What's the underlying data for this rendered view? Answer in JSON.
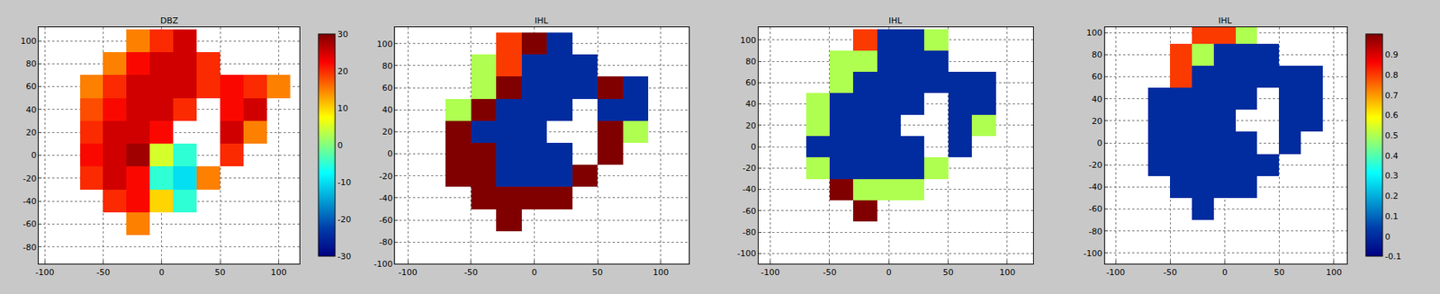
{
  "chart_data": [
    {
      "type": "heatmap",
      "title": "DBZ",
      "color": "jet",
      "grid": true,
      "x": [
        -100,
        -80,
        -60,
        -40,
        -20,
        0,
        20,
        40,
        60,
        80,
        100
      ],
      "y": [
        -100,
        -80,
        -60,
        -40,
        -20,
        0,
        20,
        40,
        60,
        80,
        100
      ],
      "z": [
        [
          null,
          null,
          null,
          null,
          null,
          null,
          null,
          null,
          null,
          null,
          null
        ],
        [
          null,
          null,
          null,
          null,
          null,
          null,
          null,
          null,
          null,
          null,
          null
        ],
        [
          null,
          null,
          null,
          null,
          15,
          null,
          null,
          null,
          null,
          null,
          null
        ],
        [
          null,
          null,
          null,
          20,
          22,
          10,
          -5,
          null,
          null,
          null,
          null
        ],
        [
          null,
          null,
          20,
          25,
          22,
          -5,
          -10,
          15,
          null,
          null,
          null
        ],
        [
          null,
          null,
          22,
          25,
          28,
          5,
          -5,
          null,
          20,
          null,
          null
        ],
        [
          null,
          null,
          20,
          25,
          25,
          22,
          null,
          null,
          25,
          15,
          null
        ],
        [
          null,
          null,
          18,
          22,
          25,
          25,
          20,
          null,
          22,
          25,
          null
        ],
        [
          null,
          null,
          15,
          20,
          25,
          25,
          25,
          20,
          22,
          20,
          15
        ],
        [
          null,
          null,
          null,
          15,
          22,
          25,
          25,
          20,
          null,
          null,
          null
        ],
        [
          null,
          null,
          null,
          null,
          15,
          20,
          25,
          null,
          null,
          null,
          null
        ]
      ],
      "xlim": [
        -105,
        118
      ],
      "ylim": [
        -95,
        112
      ],
      "xticks": [
        -100,
        -50,
        0,
        50,
        100
      ],
      "yticks": [
        -80,
        -60,
        -40,
        -20,
        0,
        20,
        40,
        60,
        80,
        100
      ],
      "zlim": [
        -30,
        30
      ],
      "zticks": [
        -30,
        -20,
        -10,
        0,
        10,
        20,
        30
      ]
    },
    {
      "type": "heatmap",
      "title": "IHL",
      "color": "jet",
      "grid": true,
      "x": [
        -100,
        -80,
        -60,
        -40,
        -20,
        0,
        20,
        40,
        60,
        80,
        100
      ],
      "y": [
        -100,
        -80,
        -60,
        -40,
        -20,
        0,
        20,
        40,
        60,
        80,
        100
      ],
      "z": [
        [
          null,
          null,
          null,
          null,
          null,
          null,
          null,
          null,
          null,
          null,
          null
        ],
        [
          null,
          null,
          null,
          null,
          null,
          null,
          null,
          null,
          null,
          null,
          null
        ],
        [
          null,
          null,
          null,
          null,
          1,
          null,
          null,
          null,
          null,
          null,
          null
        ],
        [
          null,
          null,
          null,
          1,
          1,
          1,
          1,
          null,
          null,
          null,
          null
        ],
        [
          null,
          null,
          1,
          1,
          0,
          0,
          0,
          1,
          null,
          null,
          null
        ],
        [
          null,
          null,
          1,
          1,
          0,
          0,
          0,
          null,
          1,
          null,
          null
        ],
        [
          null,
          null,
          1,
          0,
          0,
          0,
          null,
          null,
          1,
          0.5,
          null
        ],
        [
          null,
          null,
          0.5,
          1,
          0,
          0,
          0,
          null,
          0,
          0,
          null
        ],
        [
          null,
          null,
          null,
          0.5,
          1,
          0,
          0,
          0,
          1,
          0,
          null
        ],
        [
          null,
          null,
          null,
          0.5,
          0.8,
          0,
          0,
          0,
          null,
          null,
          null
        ],
        [
          null,
          null,
          null,
          null,
          0.8,
          1,
          0,
          null,
          null,
          null,
          null
        ]
      ],
      "xlim": [
        -110,
        122
      ],
      "ylim": [
        -100,
        115
      ],
      "xticks": [
        -100,
        -50,
        0,
        50,
        100
      ],
      "yticks": [
        -100,
        -80,
        -60,
        -40,
        -20,
        0,
        20,
        40,
        60,
        80,
        100
      ],
      "zlim": [
        -0.1,
        1
      ]
    },
    {
      "type": "heatmap",
      "title": "IHL",
      "color": "jet",
      "grid": true,
      "x": [
        -100,
        -80,
        -60,
        -40,
        -20,
        0,
        20,
        40,
        60,
        80,
        100
      ],
      "y": [
        -100,
        -80,
        -60,
        -40,
        -20,
        0,
        20,
        40,
        60,
        80,
        100
      ],
      "z": [
        [
          null,
          null,
          null,
          null,
          null,
          null,
          null,
          null,
          null,
          null,
          null
        ],
        [
          null,
          null,
          null,
          null,
          null,
          null,
          null,
          null,
          null,
          null,
          null
        ],
        [
          null,
          null,
          null,
          null,
          1,
          null,
          null,
          null,
          null,
          null,
          null
        ],
        [
          null,
          null,
          null,
          1,
          0.5,
          0.5,
          0.5,
          null,
          null,
          null,
          null
        ],
        [
          null,
          null,
          0.5,
          0,
          0,
          0,
          0,
          0.5,
          null,
          null,
          null
        ],
        [
          null,
          null,
          0,
          0,
          0,
          0,
          0,
          null,
          0,
          null,
          null
        ],
        [
          null,
          null,
          0.5,
          0,
          0,
          0,
          null,
          null,
          0,
          0.5,
          null
        ],
        [
          null,
          null,
          0.5,
          0,
          0,
          0,
          0,
          null,
          0,
          0,
          null
        ],
        [
          null,
          null,
          null,
          0.5,
          0,
          0,
          0,
          0,
          0,
          0,
          null
        ],
        [
          null,
          null,
          null,
          0.5,
          0.5,
          0,
          0,
          0,
          null,
          null,
          null
        ],
        [
          null,
          null,
          null,
          null,
          0.8,
          0,
          0,
          0.5,
          null,
          null,
          null
        ]
      ],
      "xlim": [
        -110,
        122
      ],
      "ylim": [
        -110,
        112
      ],
      "xticks": [
        -100,
        -50,
        0,
        50,
        100
      ],
      "yticks": [
        -100,
        -80,
        -60,
        -40,
        -20,
        0,
        20,
        40,
        60,
        80,
        100
      ],
      "zlim": [
        -0.1,
        1
      ]
    },
    {
      "type": "heatmap",
      "title": "IHL",
      "color": "jet",
      "grid": true,
      "x": [
        -100,
        -80,
        -60,
        -40,
        -20,
        0,
        20,
        40,
        60,
        80,
        100
      ],
      "y": [
        -100,
        -80,
        -60,
        -40,
        -20,
        0,
        20,
        40,
        60,
        80,
        100
      ],
      "z": [
        [
          null,
          null,
          null,
          null,
          null,
          null,
          null,
          null,
          null,
          null,
          null
        ],
        [
          null,
          null,
          null,
          null,
          null,
          null,
          null,
          null,
          null,
          null,
          null
        ],
        [
          null,
          null,
          null,
          null,
          0,
          null,
          null,
          null,
          null,
          null,
          null
        ],
        [
          null,
          null,
          null,
          0,
          0,
          0,
          0,
          null,
          null,
          null,
          null
        ],
        [
          null,
          null,
          0,
          0,
          0,
          0,
          0,
          0,
          null,
          null,
          null
        ],
        [
          null,
          null,
          0,
          0,
          0,
          0,
          0,
          null,
          0,
          null,
          null
        ],
        [
          null,
          null,
          0,
          0,
          0,
          0,
          null,
          null,
          0,
          0,
          null
        ],
        [
          null,
          null,
          0,
          0,
          0,
          0,
          0,
          null,
          0,
          0,
          null
        ],
        [
          null,
          null,
          null,
          0.8,
          0,
          0,
          0,
          0,
          0,
          0,
          null
        ],
        [
          null,
          null,
          null,
          0.8,
          0.5,
          0,
          0,
          0,
          null,
          null,
          null
        ],
        [
          null,
          null,
          null,
          null,
          0.8,
          0.8,
          0.5,
          null,
          null,
          null,
          null
        ]
      ],
      "xlim": [
        -110,
        112
      ],
      "ylim": [
        -110,
        105
      ],
      "xticks": [
        -100,
        -50,
        0,
        50,
        100
      ],
      "yticks": [
        -100,
        -80,
        -60,
        -40,
        -20,
        0,
        20,
        40,
        60,
        80,
        100
      ],
      "zlim": [
        -0.1,
        1
      ],
      "zticks": [
        -0.1,
        0,
        0.1,
        0.2,
        0.3,
        0.4,
        0.5,
        0.6,
        0.7,
        0.8,
        0.9
      ]
    }
  ]
}
